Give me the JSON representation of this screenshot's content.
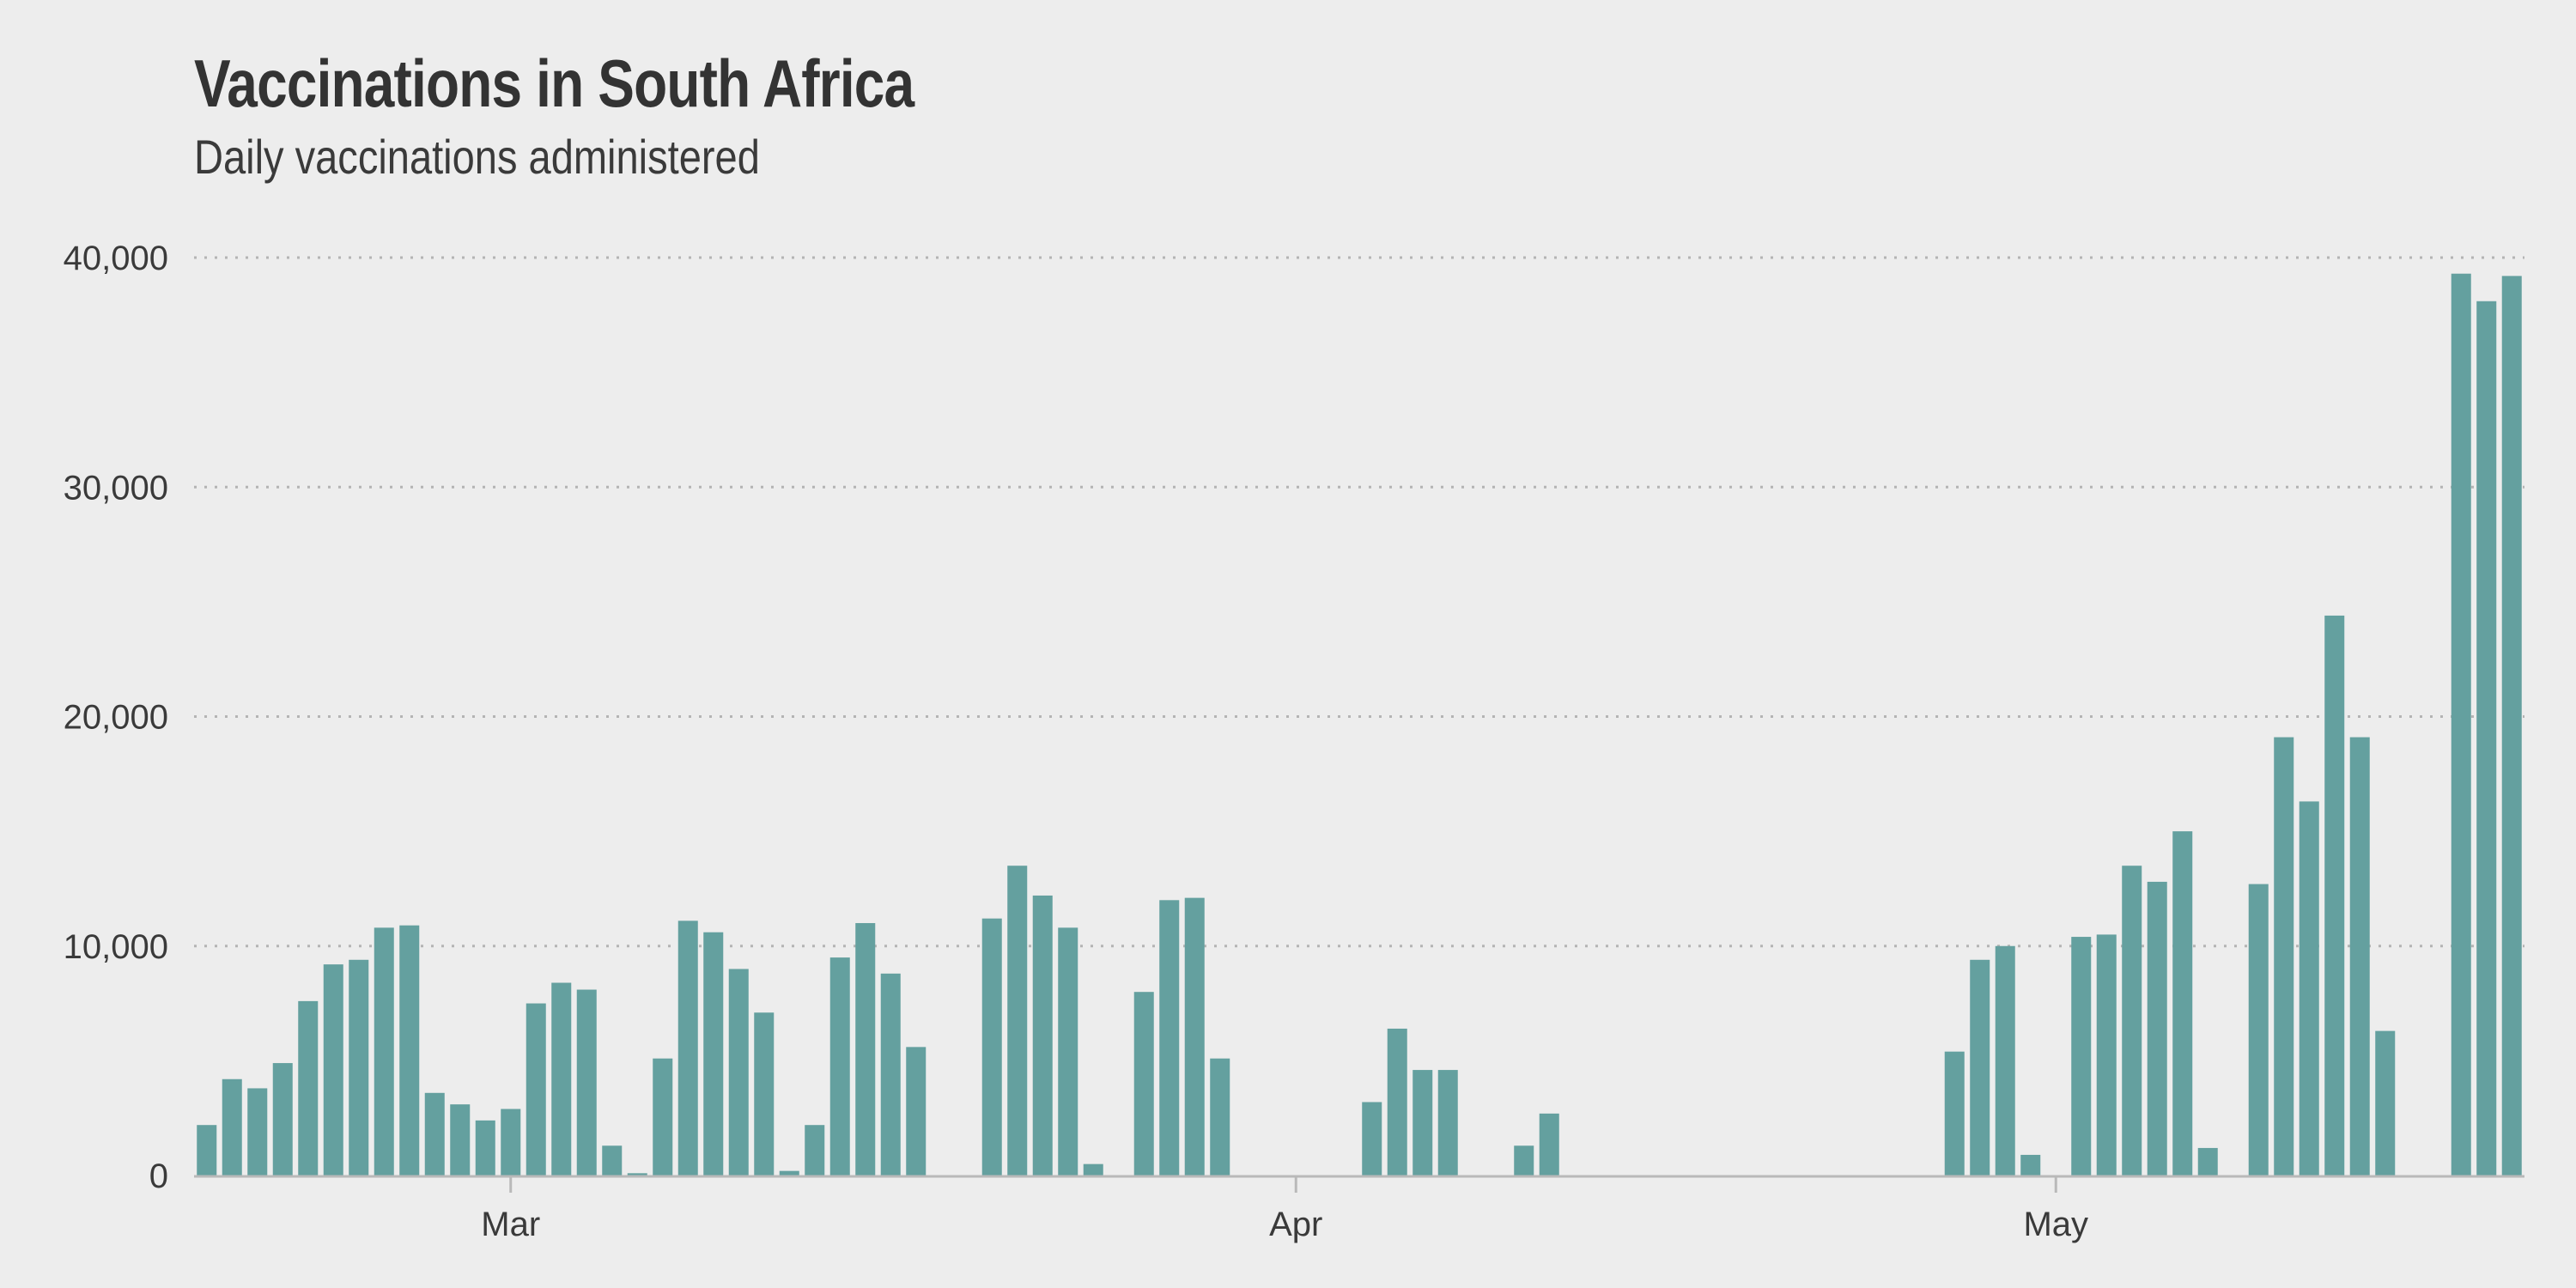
{
  "title": "Vaccinations in South Africa",
  "subtitle": "Daily vaccinations administered",
  "colors": {
    "bar": "#64a09f",
    "grid": "#b4b4b4",
    "axis": "#b9b9b9",
    "background": "#ededed"
  },
  "chart_data": {
    "type": "bar",
    "title": "Vaccinations in South Africa",
    "subtitle": "Daily vaccinations administered",
    "xlabel": "",
    "ylabel": "",
    "grid": true,
    "ylim": [
      0,
      40000
    ],
    "yticks": [
      0,
      10000,
      20000,
      30000,
      40000
    ],
    "ytick_labels": [
      "0",
      "10,000",
      "20,000",
      "30,000",
      "40,000"
    ],
    "xlim": [
      "2021-02-17",
      "2021-05-19"
    ],
    "xticks": [
      {
        "date": "2021-03-01",
        "label": "Mar"
      },
      {
        "date": "2021-04-01",
        "label": "Apr"
      },
      {
        "date": "2021-05-01",
        "label": "May"
      }
    ],
    "dates": [
      "2021-02-17",
      "2021-02-18",
      "2021-02-19",
      "2021-02-20",
      "2021-02-21",
      "2021-02-22",
      "2021-02-23",
      "2021-02-24",
      "2021-02-25",
      "2021-02-26",
      "2021-02-27",
      "2021-02-28",
      "2021-03-01",
      "2021-03-02",
      "2021-03-03",
      "2021-03-04",
      "2021-03-05",
      "2021-03-06",
      "2021-03-07",
      "2021-03-08",
      "2021-03-09",
      "2021-03-10",
      "2021-03-11",
      "2021-03-12",
      "2021-03-13",
      "2021-03-14",
      "2021-03-15",
      "2021-03-16",
      "2021-03-17",
      "2021-03-18",
      "2021-03-19",
      "2021-03-20",
      "2021-03-21",
      "2021-03-22",
      "2021-03-23",
      "2021-03-24",
      "2021-03-25",
      "2021-03-26",
      "2021-03-27",
      "2021-03-28",
      "2021-03-29",
      "2021-03-30",
      "2021-03-31",
      "2021-04-01",
      "2021-04-02",
      "2021-04-03",
      "2021-04-04",
      "2021-04-05",
      "2021-04-06",
      "2021-04-07",
      "2021-04-08",
      "2021-04-09",
      "2021-04-10",
      "2021-04-11",
      "2021-04-12",
      "2021-04-13",
      "2021-04-14",
      "2021-04-15",
      "2021-04-16",
      "2021-04-17",
      "2021-04-18",
      "2021-04-19",
      "2021-04-20",
      "2021-04-21",
      "2021-04-22",
      "2021-04-23",
      "2021-04-24",
      "2021-04-25",
      "2021-04-26",
      "2021-04-27",
      "2021-04-28",
      "2021-04-29",
      "2021-04-30",
      "2021-05-01",
      "2021-05-02",
      "2021-05-03",
      "2021-05-04",
      "2021-05-05",
      "2021-05-06",
      "2021-05-07",
      "2021-05-08",
      "2021-05-09",
      "2021-05-10",
      "2021-05-11",
      "2021-05-12",
      "2021-05-13",
      "2021-05-14",
      "2021-05-15",
      "2021-05-16",
      "2021-05-17",
      "2021-05-18",
      "2021-05-19"
    ],
    "series": [
      {
        "values": [
          2200,
          4200,
          3800,
          4900,
          7600,
          9200,
          9400,
          10800,
          10900,
          3600,
          3100,
          2400,
          2900,
          7500,
          8400,
          8100,
          1300,
          100,
          5100,
          11100,
          10600,
          9000,
          7100,
          200,
          2200,
          9500,
          11000,
          8800,
          5600,
          0,
          0,
          11200,
          13500,
          12200,
          10800,
          500,
          0,
          8000,
          12000,
          12100,
          5100,
          0,
          0,
          0,
          0,
          0,
          3200,
          6400,
          4600,
          4600,
          0,
          0,
          1300,
          2700,
          0,
          0,
          0,
          0,
          0,
          0,
          0,
          0,
          0,
          0,
          0,
          0,
          0,
          0,
          0,
          5400,
          9400,
          10000,
          900,
          0,
          10400,
          10500,
          13500,
          12800,
          15000,
          1200,
          0,
          12700,
          19100,
          16300,
          24400,
          19100,
          6300,
          0,
          0,
          39300,
          38100,
          39200
        ]
      }
    ]
  }
}
